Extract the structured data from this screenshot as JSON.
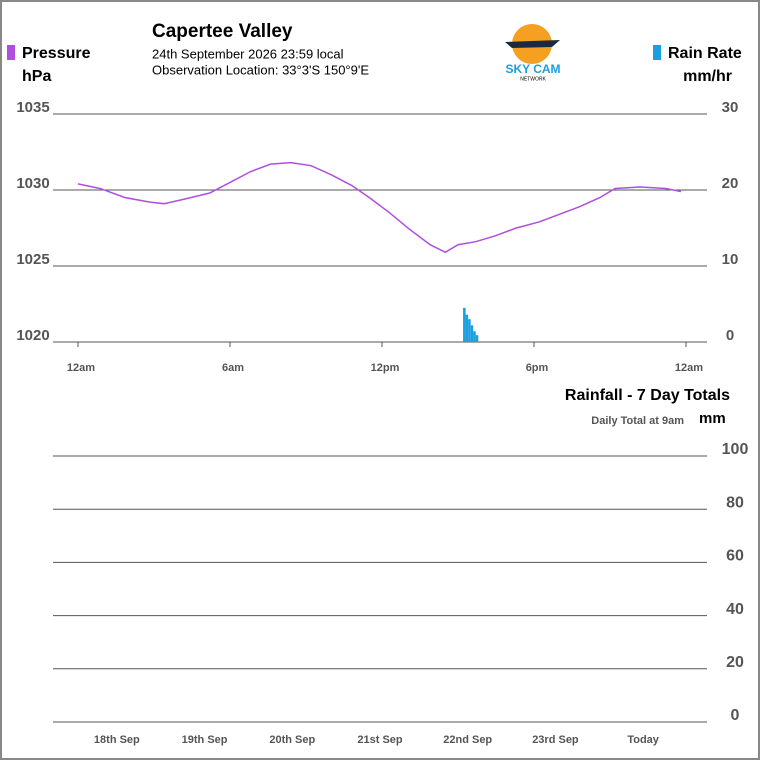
{
  "logo": {
    "text": "SKY CAM",
    "subtext": "NETWORK"
  },
  "chart_data": [
    {
      "type": "line",
      "title": "Capertee Valley",
      "subtitle": [
        "24th September 2026  23:59 local",
        "Observation Location:  33°3'S 150°9'E"
      ],
      "ylabel": "hPa",
      "y2label": "mm/hr",
      "xlim": [
        0,
        24
      ],
      "xticks": [
        {
          "value": 0,
          "label": "12am"
        },
        {
          "value": 6,
          "label": "6am"
        },
        {
          "value": 12,
          "label": "12pm"
        },
        {
          "value": 18,
          "label": "6pm"
        },
        {
          "value": 24,
          "label": "12am"
        }
      ],
      "ylim": [
        1020,
        1035
      ],
      "yticks": [
        1020,
        1025,
        1030,
        1035
      ],
      "y2lim": [
        0,
        30
      ],
      "y2ticks": [
        0,
        10,
        20,
        30
      ],
      "grid": true,
      "series": [
        {
          "name": "Pressure",
          "color": "#b04ee0",
          "x": [
            0,
            0.87,
            1.86,
            2.84,
            3.4,
            4.2,
            5.2,
            6,
            6.8,
            7.6,
            8.4,
            9.2,
            10,
            10.8,
            11.5,
            12.3,
            13.1,
            13.9,
            14.5,
            15,
            15.7,
            16.5,
            17.3,
            18.2,
            19,
            19.8,
            20.6,
            21.2,
            22.2,
            23.2,
            23.8
          ],
          "values": [
            1030.4,
            1030.1,
            1029.5,
            1029.2,
            1029.1,
            1029.4,
            1029.8,
            1030.5,
            1031.2,
            1031.7,
            1031.8,
            1031.6,
            1031.0,
            1030.3,
            1029.5,
            1028.5,
            1027.4,
            1026.4,
            1025.9,
            1026.4,
            1026.6,
            1027.0,
            1027.5,
            1027.9,
            1028.4,
            1028.9,
            1029.5,
            1030.1,
            1030.2,
            1030.1,
            1029.9
          ]
        },
        {
          "name": "Rain Rate",
          "color": "#1a9fe0",
          "axis": "y2",
          "type": "bar",
          "x": [
            15.2,
            15.3,
            15.4,
            15.5,
            15.6,
            15.7
          ],
          "values": [
            4.5,
            3.6,
            3.0,
            2.2,
            1.4,
            0.9
          ]
        }
      ]
    },
    {
      "type": "bar",
      "title": "Rainfall - 7 Day Totals",
      "subtitle": "Daily Total at 9am",
      "ylabel": "mm",
      "categories": [
        "18th Sep",
        "19th Sep",
        "20th Sep",
        "21st Sep",
        "22nd Sep",
        "23rd Sep",
        "Today"
      ],
      "values": [
        0,
        0,
        0,
        0,
        0,
        0,
        0
      ],
      "color": "#1a9fe0",
      "ylim": [
        0,
        100
      ],
      "yticks": [
        0,
        20,
        40,
        60,
        80,
        100
      ],
      "grid": true
    }
  ]
}
